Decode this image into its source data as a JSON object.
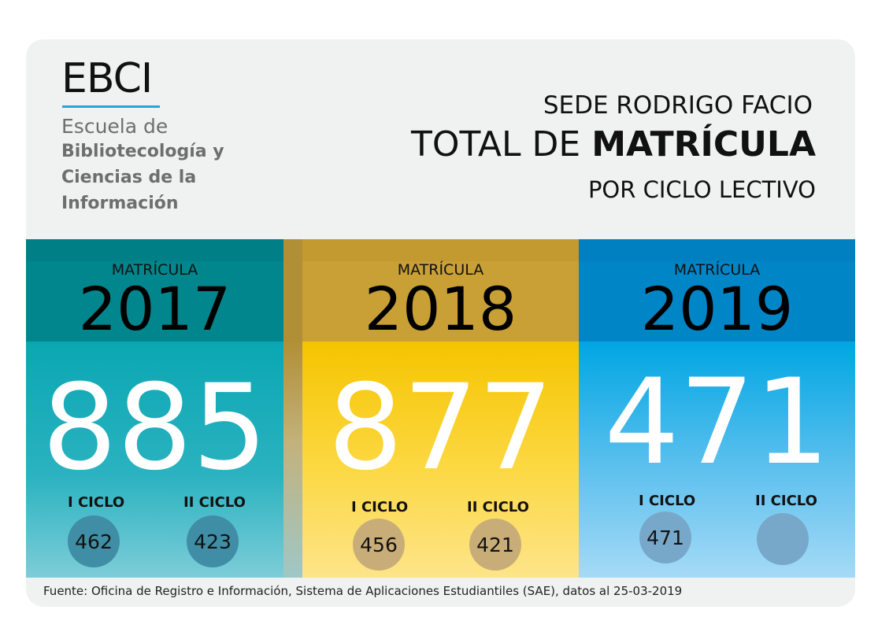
{
  "logo": {
    "mark": "EBCI",
    "school": "Escuela de",
    "department_line1": "Bibliotecología y",
    "department_line2": "Ciencias de la",
    "department_line3": "Información",
    "accent_color": "#22a7e6"
  },
  "heading": {
    "campus": "SEDE RODRIGO FACIO",
    "main_prefix": "TOTAL DE ",
    "main_bold": "MATRÍCULA",
    "sub": "POR CICLO LECTIVO"
  },
  "columns": [
    {
      "label": "MATRÍCULA",
      "year": "2017",
      "total": "885",
      "cycle1_label": "I CICLO",
      "cycle1_value": "462",
      "cycle2_label": "II CICLO",
      "cycle2_value": "423",
      "color": "#0aa7b3"
    },
    {
      "label": "MATRÍCULA",
      "year": "2018",
      "total": "877",
      "cycle1_label": "I CICLO",
      "cycle1_value": "456",
      "cycle2_label": "II CICLO",
      "cycle2_value": "421",
      "color": "#f5c400"
    },
    {
      "label": "MATRÍCULA",
      "year": "2019",
      "total": "471",
      "cycle1_label": "I CICLO",
      "cycle1_value": "471",
      "cycle2_label": "II CICLO",
      "cycle2_value": "",
      "color": "#00a6e3"
    }
  ],
  "source": "Fuente: Oficina de Registro e Información, Sistema de Aplicaciones Estudiantiles (SAE), datos al 25-03-2019"
}
